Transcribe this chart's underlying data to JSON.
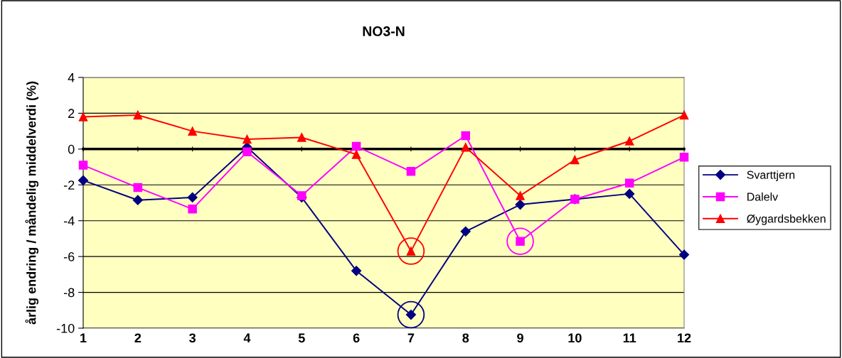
{
  "chart_data": {
    "type": "line",
    "title": "NO3-N",
    "ylabel": "årlig endring / måndelig middelverdi (%)",
    "categories": [
      "1",
      "2",
      "3",
      "4",
      "5",
      "6",
      "7",
      "8",
      "9",
      "10",
      "11",
      "12"
    ],
    "series": [
      {
        "name": "Svarttjern",
        "color": "#000080",
        "marker": "diamond",
        "values": [
          -1.75,
          -2.85,
          -2.7,
          0.1,
          -2.7,
          -6.8,
          -9.25,
          -4.6,
          -3.1,
          -2.8,
          -2.5,
          -5.9
        ]
      },
      {
        "name": "Dalelv",
        "color": "#ff00ff",
        "marker": "square",
        "values": [
          -0.9,
          -2.15,
          -3.35,
          -0.15,
          -2.6,
          0.15,
          -1.25,
          0.75,
          -5.15,
          -2.8,
          -1.9,
          -0.45
        ]
      },
      {
        "name": "Øygardsbekken",
        "color": "#ff0000",
        "marker": "triangle",
        "values": [
          1.8,
          1.9,
          1.0,
          0.55,
          0.65,
          -0.3,
          -5.7,
          0.1,
          -2.6,
          -0.6,
          0.45,
          1.9
        ]
      },
      {
        "type": "scatter",
        "x": [
          "7",
          "9",
          "7"
        ],
        "values": [
          -9.25,
          -5.15,
          -5.7
        ],
        "colors": [
          "#000080",
          "#ff00ff",
          "#ff0000"
        ]
      }
    ],
    "ylim": [
      -10,
      4
    ],
    "yticks": [
      -10,
      -8,
      -6,
      -4,
      -2,
      0,
      2,
      4
    ],
    "grid": "y",
    "legend": "right",
    "line_style": "solid"
  }
}
